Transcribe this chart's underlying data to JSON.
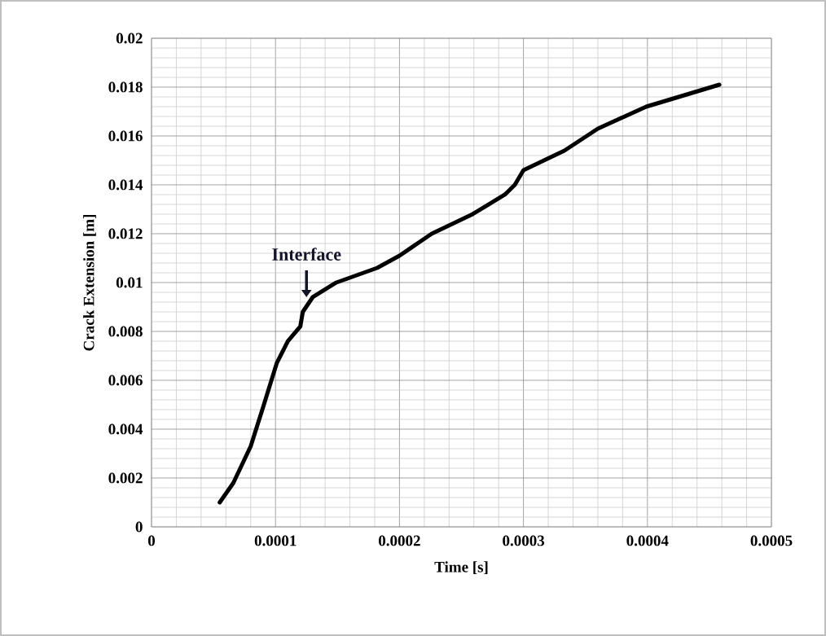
{
  "chart_data": {
    "type": "line",
    "xlabel": "Time [s]",
    "ylabel": "Crack Extension [m]",
    "x": [
      5.5e-05,
      6.6e-05,
      8e-05,
      9e-05,
      0.000101,
      0.00011,
      0.00012,
      0.000122,
      0.00013,
      0.000149,
      0.000182,
      0.0002,
      0.000226,
      0.000259,
      0.000285,
      0.000293,
      0.0003,
      0.000333,
      0.00036,
      0.000399,
      0.000458
    ],
    "series": [
      {
        "color": "#000000",
        "values": [
          0.001,
          0.0018,
          0.0033,
          0.0049,
          0.0067,
          0.0076,
          0.0082,
          0.0088,
          0.0094,
          0.01,
          0.0106,
          0.0111,
          0.012,
          0.0128,
          0.0136,
          0.014,
          0.0146,
          0.0154,
          0.0163,
          0.0172,
          0.0181
        ]
      }
    ],
    "xlim": [
      0,
      0.0005
    ],
    "ylim": [
      0,
      0.02
    ],
    "xticks": [
      0,
      0.0001,
      0.0002,
      0.0003,
      0.0004,
      0.0005
    ],
    "yticks": [
      0,
      0.002,
      0.004,
      0.006,
      0.008,
      0.01,
      0.012,
      0.014,
      0.016,
      0.018,
      0.02
    ],
    "grid": true,
    "marker": "none",
    "line_style": "solid",
    "annotations": [
      {
        "text": "Interface",
        "x": 0.000125,
        "y": 0.0091
      }
    ]
  }
}
